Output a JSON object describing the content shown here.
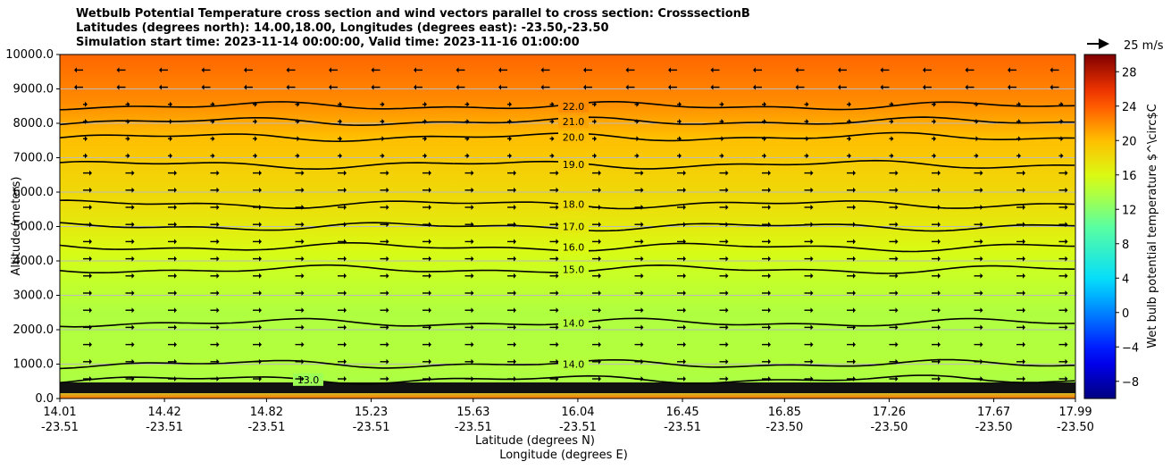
{
  "title_lines": [
    "Wetbulb Potential Temperature cross section and wind vectors parallel to cross section: CrosssectionB",
    "Latitudes (degrees north): 14.00,18.00, Longitudes (degrees east): -23.50,-23.50",
    "Simulation start time: 2023-11-14 00:00:00, Valid time: 2023-11-16 01:00:00"
  ],
  "chart_data": {
    "type": "heatmap",
    "ylabel": "Altitude (meters)",
    "xlabel_lat": "Latitude (degrees N)",
    "xlabel_lon": "Longitude (degrees E)",
    "ylim": [
      0,
      10000
    ],
    "y_ticks": [
      "0.0",
      "1000.0",
      "2000.0",
      "3000.0",
      "4000.0",
      "5000.0",
      "6000.0",
      "7000.0",
      "8000.0",
      "9000.0",
      "10000.0"
    ],
    "x_ticks": [
      {
        "lat": "14.01",
        "lon": "-23.51"
      },
      {
        "lat": "14.42",
        "lon": "-23.51"
      },
      {
        "lat": "14.82",
        "lon": "-23.51"
      },
      {
        "lat": "15.23",
        "lon": "-23.51"
      },
      {
        "lat": "15.63",
        "lon": "-23.51"
      },
      {
        "lat": "16.04",
        "lon": "-23.51"
      },
      {
        "lat": "16.45",
        "lon": "-23.51"
      },
      {
        "lat": "16.85",
        "lon": "-23.50"
      },
      {
        "lat": "17.26",
        "lon": "-23.50"
      },
      {
        "lat": "17.67",
        "lon": "-23.50"
      },
      {
        "lat": "17.99",
        "lon": "-23.50"
      }
    ],
    "colorbar": {
      "label": "Wet bulb potential temperature $^\\circ$C",
      "range": [
        -10,
        30
      ],
      "ticks": [
        "−8",
        "−4",
        "0",
        "4",
        "8",
        "12",
        "16",
        "20",
        "24",
        "28"
      ],
      "tick_values": [
        -8,
        -4,
        0,
        4,
        8,
        12,
        16,
        20,
        24,
        28
      ]
    },
    "quiver_key": "25 m/s",
    "contours": [
      {
        "level": "22.0",
        "alt": 8500
      },
      {
        "level": "21.0",
        "alt": 8050
      },
      {
        "level": "20.0",
        "alt": 7600
      },
      {
        "level": "19.0",
        "alt": 6800
      },
      {
        "level": "18.0",
        "alt": 5650
      },
      {
        "level": "17.0",
        "alt": 5000
      },
      {
        "level": "16.0",
        "alt": 4400
      },
      {
        "level": "15.0",
        "alt": 3750
      },
      {
        "level": "14.0",
        "alt": 2200
      },
      {
        "level": "14.0",
        "alt": 1000
      },
      {
        "level": "13.0",
        "alt": 550
      }
    ],
    "theta_profile": [
      {
        "alt": 0,
        "value": 23
      },
      {
        "alt": 300,
        "value": 13.5
      },
      {
        "alt": 1000,
        "value": 14
      },
      {
        "alt": 2500,
        "value": 13.8
      },
      {
        "alt": 3700,
        "value": 15
      },
      {
        "alt": 4400,
        "value": 16
      },
      {
        "alt": 5000,
        "value": 17
      },
      {
        "alt": 5700,
        "value": 18
      },
      {
        "alt": 6800,
        "value": 19
      },
      {
        "alt": 7600,
        "value": 20
      },
      {
        "alt": 8100,
        "value": 21
      },
      {
        "alt": 8600,
        "value": 22
      },
      {
        "alt": 10000,
        "value": 23.5
      }
    ]
  }
}
